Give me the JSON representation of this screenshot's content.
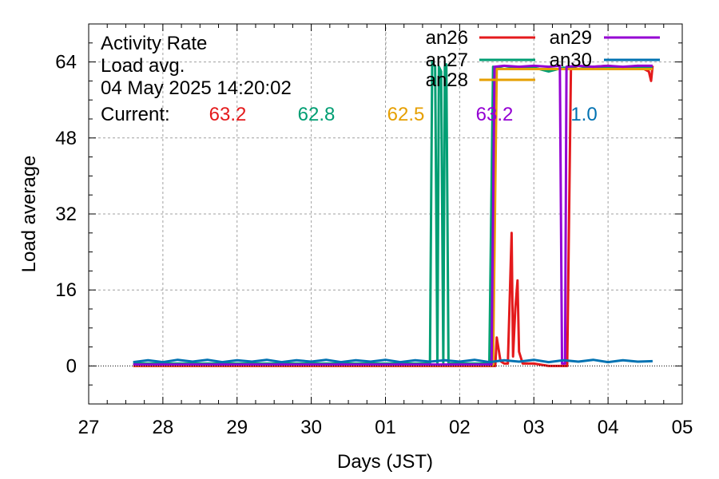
{
  "info": {
    "title": "Activity Rate",
    "subtitle": "Load avg.",
    "timestamp": "04 May 2025 14:20:02",
    "current_label": "Current:"
  },
  "colors": {
    "an26": "#e41a1c",
    "an27": "#009e73",
    "an28": "#e69f00",
    "an29": "#9400d3",
    "an30": "#0072b2",
    "grid": "#a0a0a0"
  },
  "chart_data": {
    "type": "line",
    "xlabel": "Days (JST)",
    "ylabel": "Load average",
    "xlim": [
      0,
      8
    ],
    "ylim": [
      -8,
      72
    ],
    "x_ticks": [
      0,
      1,
      2,
      3,
      4,
      5,
      6,
      7,
      8
    ],
    "x_tick_labels": [
      "27",
      "28",
      "29",
      "30",
      "01",
      "02",
      "03",
      "04",
      "05"
    ],
    "y_ticks": [
      0,
      16,
      32,
      48,
      64
    ],
    "y_tick_labels": [
      "0",
      "16",
      "32",
      "48",
      "64"
    ],
    "grid": true,
    "legend_position": "top-right",
    "series": [
      {
        "name": "an26",
        "current": "63.2",
        "points": [
          [
            0.6,
            0
          ],
          [
            2.0,
            0
          ],
          [
            3.0,
            0
          ],
          [
            4.0,
            0
          ],
          [
            5.0,
            0
          ],
          [
            5.48,
            0
          ],
          [
            5.5,
            6
          ],
          [
            5.55,
            1
          ],
          [
            5.6,
            0.5
          ],
          [
            5.65,
            0.5
          ],
          [
            5.7,
            28
          ],
          [
            5.72,
            2
          ],
          [
            5.75,
            12
          ],
          [
            5.78,
            18
          ],
          [
            5.8,
            3
          ],
          [
            5.85,
            0.5
          ],
          [
            6.0,
            0.5
          ],
          [
            6.2,
            0
          ],
          [
            6.45,
            0
          ],
          [
            6.5,
            63
          ],
          [
            6.6,
            62.5
          ],
          [
            6.8,
            63
          ],
          [
            7.0,
            63.2
          ],
          [
            7.2,
            62.8
          ],
          [
            7.4,
            63.2
          ],
          [
            7.55,
            62
          ],
          [
            7.58,
            60
          ],
          [
            7.6,
            63.2
          ]
        ]
      },
      {
        "name": "an27",
        "current": "62.8",
        "points": [
          [
            0.6,
            0.5
          ],
          [
            2.0,
            0.5
          ],
          [
            3.0,
            0.5
          ],
          [
            4.0,
            0.5
          ],
          [
            4.6,
            0.5
          ],
          [
            4.63,
            64
          ],
          [
            4.67,
            63
          ],
          [
            4.7,
            0.5
          ],
          [
            4.72,
            63
          ],
          [
            4.75,
            62
          ],
          [
            4.78,
            0.5
          ],
          [
            4.8,
            63
          ],
          [
            4.82,
            63.5
          ],
          [
            4.85,
            0.5
          ],
          [
            5.0,
            0.5
          ],
          [
            5.4,
            0.5
          ],
          [
            5.45,
            63
          ],
          [
            5.6,
            62.5
          ],
          [
            5.8,
            63
          ],
          [
            6.0,
            62.8
          ],
          [
            6.2,
            62
          ],
          [
            6.4,
            62.8
          ],
          [
            6.6,
            62.5
          ],
          [
            6.8,
            63
          ],
          [
            7.0,
            62.8
          ],
          [
            7.2,
            62.5
          ],
          [
            7.4,
            62.8
          ],
          [
            7.6,
            62.8
          ]
        ]
      },
      {
        "name": "an28",
        "current": "62.5",
        "points": [
          [
            0.6,
            0.2
          ],
          [
            2.0,
            0.2
          ],
          [
            3.0,
            0.2
          ],
          [
            4.0,
            0.2
          ],
          [
            5.0,
            0.2
          ],
          [
            5.45,
            0.2
          ],
          [
            5.5,
            62.5
          ],
          [
            5.8,
            62.5
          ],
          [
            6.0,
            62.5
          ],
          [
            6.2,
            62.5
          ],
          [
            6.4,
            62.5
          ],
          [
            6.6,
            62.5
          ],
          [
            6.8,
            62.5
          ],
          [
            7.0,
            62.5
          ],
          [
            7.2,
            62.5
          ],
          [
            7.4,
            62.5
          ],
          [
            7.6,
            62.5
          ]
        ]
      },
      {
        "name": "an29",
        "current": "63.2",
        "points": [
          [
            0.6,
            0.3
          ],
          [
            2.0,
            0.3
          ],
          [
            3.0,
            0.3
          ],
          [
            4.0,
            0.3
          ],
          [
            5.0,
            0.3
          ],
          [
            5.43,
            0.3
          ],
          [
            5.47,
            63
          ],
          [
            5.6,
            63.2
          ],
          [
            5.8,
            63
          ],
          [
            6.0,
            63.2
          ],
          [
            6.2,
            63
          ],
          [
            6.35,
            63.2
          ],
          [
            6.38,
            0.5
          ],
          [
            6.42,
            0.5
          ],
          [
            6.44,
            63
          ],
          [
            6.6,
            63.2
          ],
          [
            6.8,
            63
          ],
          [
            7.0,
            63.2
          ],
          [
            7.2,
            63
          ],
          [
            7.4,
            63.2
          ],
          [
            7.6,
            63.2
          ]
        ]
      },
      {
        "name": "an30",
        "current": "1.0",
        "points": [
          [
            0.6,
            0.8
          ],
          [
            0.8,
            1.2
          ],
          [
            1.0,
            0.8
          ],
          [
            1.2,
            1.3
          ],
          [
            1.4,
            0.9
          ],
          [
            1.6,
            1.3
          ],
          [
            1.8,
            0.8
          ],
          [
            2.0,
            1.2
          ],
          [
            2.2,
            0.9
          ],
          [
            2.4,
            1.3
          ],
          [
            2.6,
            0.8
          ],
          [
            2.8,
            1.2
          ],
          [
            3.0,
            0.9
          ],
          [
            3.2,
            1.3
          ],
          [
            3.4,
            0.8
          ],
          [
            3.6,
            1.2
          ],
          [
            3.8,
            0.9
          ],
          [
            4.0,
            1.3
          ],
          [
            4.2,
            0.8
          ],
          [
            4.4,
            1.2
          ],
          [
            4.6,
            0.9
          ],
          [
            4.8,
            1.2
          ],
          [
            5.0,
            0.9
          ],
          [
            5.2,
            1.3
          ],
          [
            5.4,
            0.8
          ],
          [
            5.6,
            1.2
          ],
          [
            5.8,
            0.9
          ],
          [
            6.0,
            1.3
          ],
          [
            6.2,
            0.8
          ],
          [
            6.4,
            1.2
          ],
          [
            6.6,
            0.9
          ],
          [
            6.8,
            1.3
          ],
          [
            7.0,
            0.8
          ],
          [
            7.2,
            1.2
          ],
          [
            7.4,
            0.9
          ],
          [
            7.6,
            1.0
          ]
        ]
      }
    ]
  }
}
